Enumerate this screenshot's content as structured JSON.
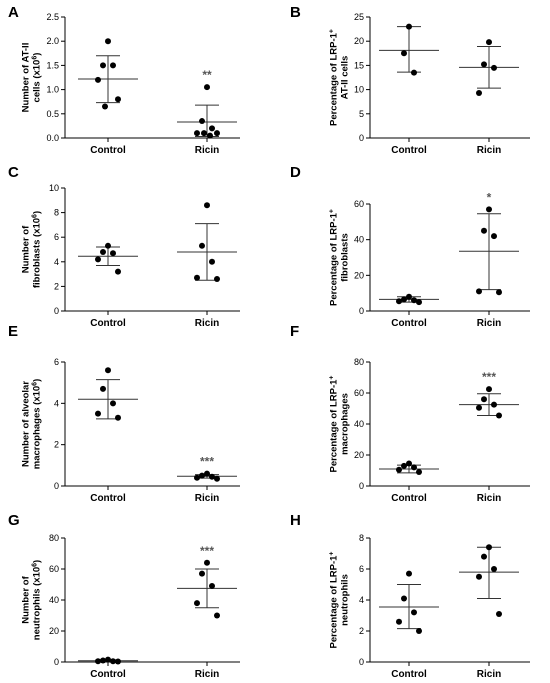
{
  "chart_data": [
    {
      "type": "scatter",
      "panel": "A",
      "ylabel_lines": [
        "Number of AT-II",
        "cells (x10{6})"
      ],
      "ylim": [
        0,
        2.5
      ],
      "yticks": [
        "0.0",
        "0.5",
        "1.0",
        "1.5",
        "2.0",
        "2.5"
      ],
      "categories": [
        "Control",
        "Ricin"
      ],
      "series": [
        {
          "points": [
            2.0,
            1.5,
            1.5,
            1.2,
            0.8,
            0.65
          ],
          "mean": 1.22,
          "sd_upper": 1.7,
          "sd_lower": 0.73
        },
        {
          "points": [
            1.05,
            0.35,
            0.2,
            0.1,
            0.1,
            0.1,
            0.05
          ],
          "mean": 0.33,
          "sd_upper": 0.68,
          "sd_lower": 0.03,
          "significance": "**"
        }
      ]
    },
    {
      "type": "scatter",
      "panel": "B",
      "ylabel_lines": [
        "Percentage of LRP-1{+}",
        "AT-II cells"
      ],
      "ylim": [
        0,
        25
      ],
      "yticks": [
        "0",
        "5",
        "10",
        "15",
        "20",
        "25"
      ],
      "categories": [
        "Control",
        "Ricin"
      ],
      "series": [
        {
          "points": [
            23,
            17.5,
            13.5
          ],
          "mean": 18.1,
          "sd_upper": 23,
          "sd_lower": 13.6
        },
        {
          "points": [
            19.8,
            15.2,
            14.5,
            9.3
          ],
          "mean": 14.6,
          "sd_upper": 18.9,
          "sd_lower": 10.3
        }
      ]
    },
    {
      "type": "scatter",
      "panel": "C",
      "ylabel_lines": [
        "Number of",
        "fibroblasts (x10{6})"
      ],
      "ylim": [
        0,
        10
      ],
      "yticks": [
        "0",
        "2",
        "4",
        "6",
        "8",
        "10"
      ],
      "categories": [
        "Control",
        "Ricin"
      ],
      "series": [
        {
          "points": [
            5.3,
            4.8,
            4.7,
            4.2,
            3.2
          ],
          "mean": 4.45,
          "sd_upper": 5.2,
          "sd_lower": 3.7
        },
        {
          "points": [
            8.6,
            5.3,
            4.0,
            2.7,
            2.6
          ],
          "mean": 4.8,
          "sd_upper": 7.1,
          "sd_lower": 2.5
        }
      ]
    },
    {
      "type": "scatter",
      "panel": "D",
      "ylabel_lines": [
        "Percentage of LRP-1{+}",
        "fibroblasts"
      ],
      "ylim": [
        0,
        60
      ],
      "yticks": [
        "0",
        "20",
        "40",
        "60"
      ],
      "categories": [
        "Control",
        "Ricin"
      ],
      "series": [
        {
          "points": [
            8,
            6.5,
            6,
            5.5,
            5
          ],
          "mean": 6.5,
          "sd_upper": 8,
          "sd_lower": 5
        },
        {
          "points": [
            57,
            45,
            42,
            11,
            10.5
          ],
          "mean": 33.5,
          "sd_upper": 54.5,
          "sd_lower": 12,
          "significance": "*"
        }
      ]
    },
    {
      "type": "scatter",
      "panel": "E",
      "ylabel_lines": [
        "Number of alveolar",
        "macrophages (x10{6})"
      ],
      "ylim": [
        0,
        6
      ],
      "yticks": [
        "0",
        "2",
        "4",
        "6"
      ],
      "categories": [
        "Control",
        "Ricin"
      ],
      "series": [
        {
          "points": [
            5.6,
            4.7,
            4.0,
            3.5,
            3.3
          ],
          "mean": 4.2,
          "sd_upper": 5.15,
          "sd_lower": 3.25
        },
        {
          "points": [
            0.6,
            0.5,
            0.45,
            0.4,
            0.35
          ],
          "mean": 0.47,
          "sd_upper": 0.55,
          "sd_lower": 0.38,
          "significance": "***"
        }
      ]
    },
    {
      "type": "scatter",
      "panel": "F",
      "ylabel_lines": [
        "Percentage of LRP-1{+}",
        "macrophages"
      ],
      "ylim": [
        0,
        80
      ],
      "yticks": [
        "0",
        "20",
        "40",
        "60",
        "80"
      ],
      "categories": [
        "Control",
        "Ricin"
      ],
      "series": [
        {
          "points": [
            14.5,
            13,
            12,
            10.5,
            9
          ],
          "mean": 11,
          "sd_upper": 13.5,
          "sd_lower": 8.5
        },
        {
          "points": [
            62.5,
            56,
            52.5,
            50.5,
            45.5
          ],
          "mean": 52.5,
          "sd_upper": 59.5,
          "sd_lower": 45.5,
          "significance": "***"
        }
      ]
    },
    {
      "type": "scatter",
      "panel": "G",
      "ylabel_lines": [
        "Number of",
        "neutrophils (x10{6})"
      ],
      "ylim": [
        0,
        80
      ],
      "yticks": [
        "0",
        "20",
        "40",
        "60",
        "80"
      ],
      "categories": [
        "Control",
        "Ricin"
      ],
      "series": [
        {
          "points": [
            1.5,
            1.0,
            0.5,
            0.5,
            0.3
          ],
          "mean": 0.8,
          "sd_upper": 1.3,
          "sd_lower": 0.3
        },
        {
          "points": [
            64,
            57,
            49,
            38,
            30
          ],
          "mean": 47.5,
          "sd_upper": 60,
          "sd_lower": 35,
          "significance": "***"
        }
      ]
    },
    {
      "type": "scatter",
      "panel": "H",
      "ylabel_lines": [
        "Percentage of LRP-1{+}",
        "neutrophils"
      ],
      "ylim": [
        0,
        8
      ],
      "yticks": [
        "0",
        "2",
        "4",
        "6",
        "8"
      ],
      "categories": [
        "Control",
        "Ricin"
      ],
      "series": [
        {
          "points": [
            5.7,
            4.1,
            3.2,
            2.6,
            2.0
          ],
          "mean": 3.55,
          "sd_upper": 5.0,
          "sd_lower": 2.15
        },
        {
          "points": [
            7.4,
            6.8,
            6.0,
            5.5,
            3.1
          ],
          "mean": 5.8,
          "sd_upper": 7.4,
          "sd_lower": 4.1
        }
      ]
    }
  ]
}
